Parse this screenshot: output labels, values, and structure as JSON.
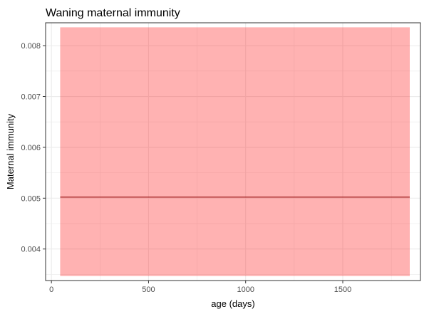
{
  "chart_data": {
    "type": "line",
    "title": "Waning maternal immunity",
    "xlabel": "age (days)",
    "ylabel": "Maternal immunity",
    "xlim": [
      -30,
      1900
    ],
    "ylim": [
      0.00338,
      0.00845
    ],
    "x_ticks": [
      0,
      500,
      1000,
      1500
    ],
    "y_ticks": [
      0.004,
      0.005,
      0.006,
      0.007,
      0.008
    ],
    "x_tick_labels": [
      "0",
      "500",
      "1000",
      "1500"
    ],
    "y_tick_labels": [
      "0.004",
      "0.005",
      "0.006",
      "0.007",
      "0.008"
    ],
    "grid": true,
    "series": [
      {
        "x": [
          45,
          1845
        ],
        "y": [
          0.00502,
          0.00502
        ],
        "lower": [
          0.00347,
          0.00347
        ],
        "upper": [
          0.00836,
          0.00836
        ],
        "line_color": "#8b0000",
        "band_color": "#ff0000",
        "band_opacity": 0.3
      }
    ]
  }
}
